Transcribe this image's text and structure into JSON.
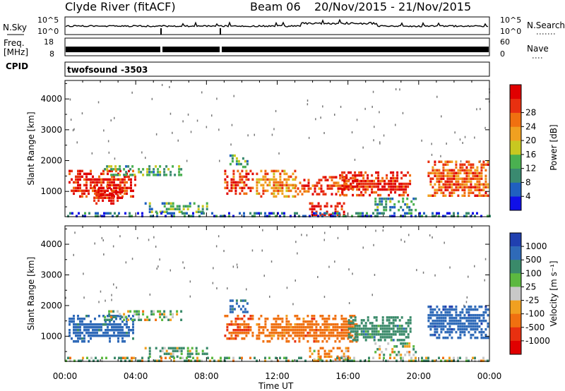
{
  "header": {
    "station": "Clyde River (fitACF)",
    "beam": "Beam 06",
    "date_range": "20/Nov/2015 - 21/Nov/2015"
  },
  "noise_panel": {
    "left_label": "N.Sky",
    "right_label": "N.Search",
    "ticks_left": [
      "10^5",
      "10^0"
    ],
    "ticks_right": [
      "10^5",
      "10^0"
    ]
  },
  "freq_panel": {
    "left_label_1": "Freq.",
    "left_label_2": "[MHz]",
    "right_label": "Nave",
    "ticks_left": [
      "18",
      "8"
    ],
    "ticks_right": [
      "60",
      "0"
    ]
  },
  "cpid": {
    "label": "CPID",
    "program": "twofsound",
    "id": "-3503"
  },
  "time_axis": {
    "label": "Time UT",
    "ticks": [
      "00:00",
      "04:00",
      "08:00",
      "12:00",
      "16:00",
      "20:00",
      "00:00"
    ]
  },
  "chart_data": [
    {
      "type": "heatmap",
      "title": "",
      "xlabel": "Time UT",
      "ylabel": "Slant Range [km]",
      "xlim": [
        0,
        24
      ],
      "ylim": [
        180,
        4600
      ],
      "yticks": [
        1000,
        2000,
        3000,
        4000
      ],
      "colorbar": {
        "label": "Power [dB]",
        "range": [
          0,
          32
        ],
        "ticks": [
          "4",
          "8",
          "12",
          "16",
          "20",
          "24",
          "28"
        ],
        "colors": [
          "#1010e8",
          "#2060c0",
          "#3a8a70",
          "#4ab050",
          "#c8c820",
          "#f0a020",
          "#f07010",
          "#e83010",
          "#e00000"
        ]
      },
      "regions": [
        {
          "t0": 0.2,
          "t1": 4.0,
          "r0": 800,
          "r1": 1700,
          "value": 28
        },
        {
          "t0": 1.6,
          "t1": 3.2,
          "r0": 600,
          "r1": 1200,
          "value": 30
        },
        {
          "t0": 2.2,
          "t1": 6.6,
          "r0": 1500,
          "r1": 1850,
          "value": 12
        },
        {
          "t0": 4.5,
          "t1": 8.0,
          "r0": 300,
          "r1": 650,
          "value": 12
        },
        {
          "t0": 9.0,
          "t1": 10.6,
          "r0": 900,
          "r1": 1700,
          "value": 26
        },
        {
          "t0": 9.3,
          "t1": 10.3,
          "r0": 1800,
          "r1": 2200,
          "value": 10
        },
        {
          "t0": 10.8,
          "t1": 13.0,
          "r0": 800,
          "r1": 1700,
          "value": 22
        },
        {
          "t0": 13.0,
          "t1": 16.5,
          "r0": 900,
          "r1": 1500,
          "value": 26
        },
        {
          "t0": 13.8,
          "t1": 15.8,
          "r0": 250,
          "r1": 650,
          "value": 30
        },
        {
          "t0": 15.5,
          "t1": 19.5,
          "r0": 900,
          "r1": 1650,
          "value": 28
        },
        {
          "t0": 17.5,
          "t1": 19.8,
          "r0": 350,
          "r1": 800,
          "value": 10
        },
        {
          "t0": 20.5,
          "t1": 23.9,
          "r0": 900,
          "r1": 2000,
          "value": 24
        },
        {
          "t0": 0.0,
          "t1": 24.0,
          "r0": 200,
          "r1": 330,
          "value": 6
        }
      ]
    },
    {
      "type": "heatmap",
      "title": "",
      "xlabel": "Time UT",
      "ylabel": "Slant Range [km]",
      "xlim": [
        0,
        24
      ],
      "ylim": [
        180,
        4600
      ],
      "yticks": [
        1000,
        2000,
        3000,
        4000
      ],
      "colorbar": {
        "label": "Velocity [m s⁻¹]",
        "range": [
          -1200,
          1200
        ],
        "ticks": [
          "1000",
          "500",
          "100",
          "25",
          "-25",
          "-100",
          "-500",
          "-1000"
        ],
        "colors": [
          "#2040b0",
          "#2f6ab8",
          "#3a8a6a",
          "#5cb840",
          "#c8c8c8",
          "#f0a020",
          "#f07010",
          "#e83010",
          "#e00000"
        ]
      },
      "regions": [
        {
          "t0": 0.2,
          "t1": 3.8,
          "r0": 800,
          "r1": 1700,
          "value": 700
        },
        {
          "t0": 2.2,
          "t1": 6.6,
          "r0": 1500,
          "r1": 1850,
          "value": 80
        },
        {
          "t0": 4.5,
          "t1": 8.0,
          "r0": 300,
          "r1": 650,
          "value": 150
        },
        {
          "t0": 9.0,
          "t1": 10.6,
          "r0": 900,
          "r1": 1700,
          "value": -400
        },
        {
          "t0": 9.3,
          "t1": 10.3,
          "r0": 1800,
          "r1": 2200,
          "value": 600
        },
        {
          "t0": 10.8,
          "t1": 16.5,
          "r0": 800,
          "r1": 1700,
          "value": -300
        },
        {
          "t0": 13.8,
          "t1": 16.0,
          "r0": 250,
          "r1": 650,
          "value": -120
        },
        {
          "t0": 16.0,
          "t1": 19.5,
          "r0": 900,
          "r1": 1650,
          "value": 300
        },
        {
          "t0": 17.5,
          "t1": 19.8,
          "r0": 350,
          "r1": 800,
          "value": 60
        },
        {
          "t0": 20.5,
          "t1": 23.9,
          "r0": 900,
          "r1": 2000,
          "value": 800
        },
        {
          "t0": 0.0,
          "t1": 24.0,
          "r0": 200,
          "r1": 330,
          "value": 60
        }
      ]
    }
  ]
}
